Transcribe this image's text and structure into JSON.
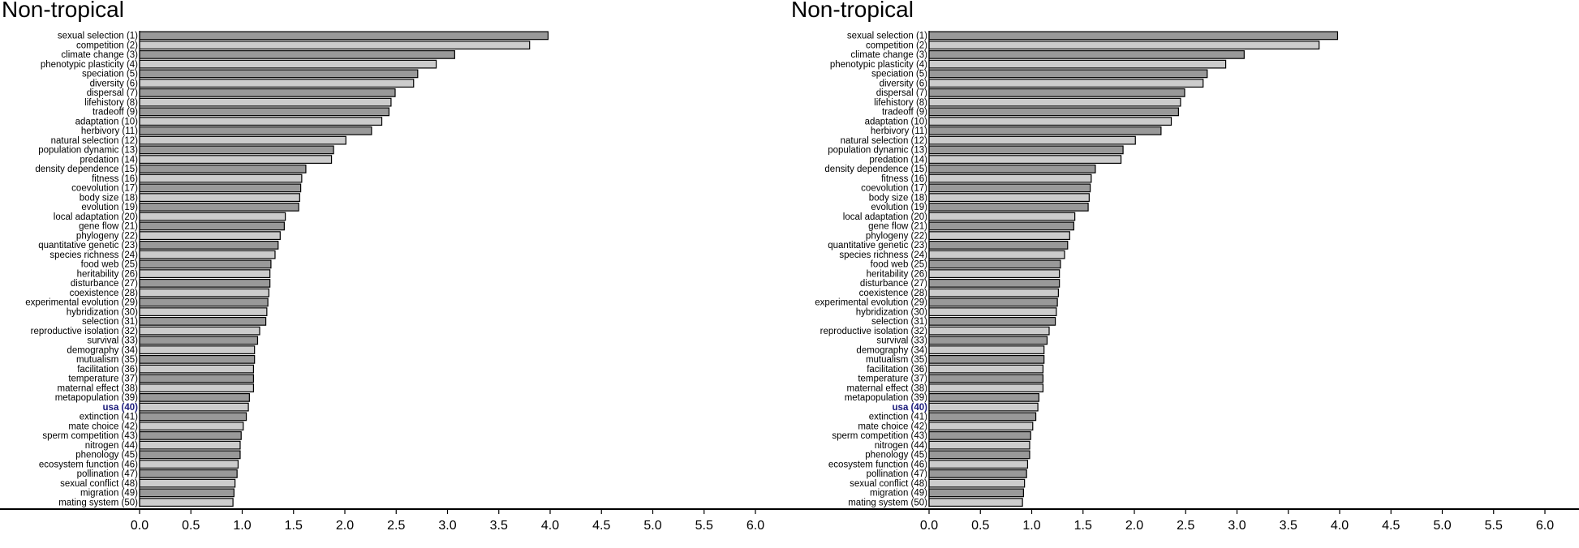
{
  "colors": {
    "bar_dark": "#999999",
    "bar_light": "#cccccc",
    "bar_stroke": "#000000",
    "highlight_label": "#1a1a7a",
    "axis": "#000000"
  },
  "chart_data": [
    {
      "type": "bar",
      "orientation": "horizontal",
      "title": "Non-tropical",
      "xlabel": "",
      "xlim": [
        0,
        6.0
      ],
      "xticks": [
        "0.0",
        "0.5",
        "1.0",
        "1.5",
        "2.0",
        "2.5",
        "3.0",
        "3.5",
        "4.0",
        "4.5",
        "5.0",
        "5.5",
        "6.0"
      ],
      "xtick_values": [
        0,
        0.5,
        1.0,
        1.5,
        2.0,
        2.5,
        3.0,
        3.5,
        4.0,
        4.5,
        5.0,
        5.5,
        6.0
      ],
      "highlight_index": 39,
      "grid": false,
      "categories": [
        "sexual selection (1)",
        "competition (2)",
        "climate change (3)",
        "phenotypic plasticity (4)",
        "speciation (5)",
        "diversity (6)",
        "dispersal (7)",
        "lifehistory (8)",
        "tradeoff (9)",
        "adaptation (10)",
        "herbivory (11)",
        "natural selection (12)",
        "population dynamic (13)",
        "predation (14)",
        "density dependence (15)",
        "fitness (16)",
        "coevolution (17)",
        "body size (18)",
        "evolution (19)",
        "local adaptation (20)",
        "gene flow (21)",
        "phylogeny (22)",
        "quantitative genetic (23)",
        "species richness (24)",
        "food web (25)",
        "heritability (26)",
        "disturbance (27)",
        "coexistence (28)",
        "experimental evolution (29)",
        "hybridization (30)",
        "selection (31)",
        "reproductive isolation (32)",
        "survival (33)",
        "demography (34)",
        "mutualism (35)",
        "facilitation (36)",
        "temperature (37)",
        "maternal effect (38)",
        "metapopulation (39)",
        "usa (40)",
        "extinction (41)",
        "mate choice (42)",
        "sperm competition (43)",
        "nitrogen (44)",
        "phenology (45)",
        "ecosystem function (46)",
        "pollination (47)",
        "sexual conflict (48)",
        "migration (49)",
        "mating system (50)"
      ],
      "values": [
        3.98,
        3.8,
        3.07,
        2.89,
        2.71,
        2.67,
        2.49,
        2.45,
        2.43,
        2.36,
        2.26,
        2.01,
        1.89,
        1.87,
        1.62,
        1.58,
        1.57,
        1.56,
        1.55,
        1.42,
        1.41,
        1.37,
        1.35,
        1.32,
        1.28,
        1.27,
        1.27,
        1.26,
        1.25,
        1.24,
        1.23,
        1.17,
        1.15,
        1.12,
        1.12,
        1.11,
        1.11,
        1.11,
        1.07,
        1.06,
        1.04,
        1.01,
        0.99,
        0.98,
        0.98,
        0.96,
        0.95,
        0.93,
        0.92,
        0.91
      ]
    },
    {
      "type": "bar",
      "orientation": "horizontal",
      "title": "Non-tropical",
      "xlabel": "",
      "xlim": [
        0,
        6.0
      ],
      "xticks": [
        "0.0",
        "0.5",
        "1.0",
        "1.5",
        "2.0",
        "2.5",
        "3.0",
        "3.5",
        "4.0",
        "4.5",
        "5.0",
        "5.5",
        "6.0"
      ],
      "xtick_values": [
        0,
        0.5,
        1.0,
        1.5,
        2.0,
        2.5,
        3.0,
        3.5,
        4.0,
        4.5,
        5.0,
        5.5,
        6.0
      ],
      "highlight_index": 39,
      "grid": false,
      "categories": [
        "sexual selection (1)",
        "competition (2)",
        "climate change (3)",
        "phenotypic plasticity (4)",
        "speciation (5)",
        "diversity (6)",
        "dispersal (7)",
        "lifehistory (8)",
        "tradeoff (9)",
        "adaptation (10)",
        "herbivory (11)",
        "natural selection (12)",
        "population dynamic (13)",
        "predation (14)",
        "density dependence (15)",
        "fitness (16)",
        "coevolution (17)",
        "body size (18)",
        "evolution (19)",
        "local adaptation (20)",
        "gene flow (21)",
        "phylogeny (22)",
        "quantitative genetic (23)",
        "species richness (24)",
        "food web (25)",
        "heritability (26)",
        "disturbance (27)",
        "coexistence (28)",
        "experimental evolution (29)",
        "hybridization (30)",
        "selection (31)",
        "reproductive isolation (32)",
        "survival (33)",
        "demography (34)",
        "mutualism (35)",
        "facilitation (36)",
        "temperature (37)",
        "maternal effect (38)",
        "metapopulation (39)",
        "usa (40)",
        "extinction (41)",
        "mate choice (42)",
        "sperm competition (43)",
        "nitrogen (44)",
        "phenology (45)",
        "ecosystem function (46)",
        "pollination (47)",
        "sexual conflict (48)",
        "migration (49)",
        "mating system (50)"
      ],
      "values": [
        3.98,
        3.8,
        3.07,
        2.89,
        2.71,
        2.67,
        2.49,
        2.45,
        2.43,
        2.36,
        2.26,
        2.01,
        1.89,
        1.87,
        1.62,
        1.58,
        1.57,
        1.56,
        1.55,
        1.42,
        1.41,
        1.37,
        1.35,
        1.32,
        1.28,
        1.27,
        1.27,
        1.26,
        1.25,
        1.24,
        1.23,
        1.17,
        1.15,
        1.12,
        1.12,
        1.11,
        1.11,
        1.11,
        1.07,
        1.06,
        1.04,
        1.01,
        0.99,
        0.98,
        0.98,
        0.96,
        0.95,
        0.93,
        0.92,
        0.91
      ]
    }
  ]
}
